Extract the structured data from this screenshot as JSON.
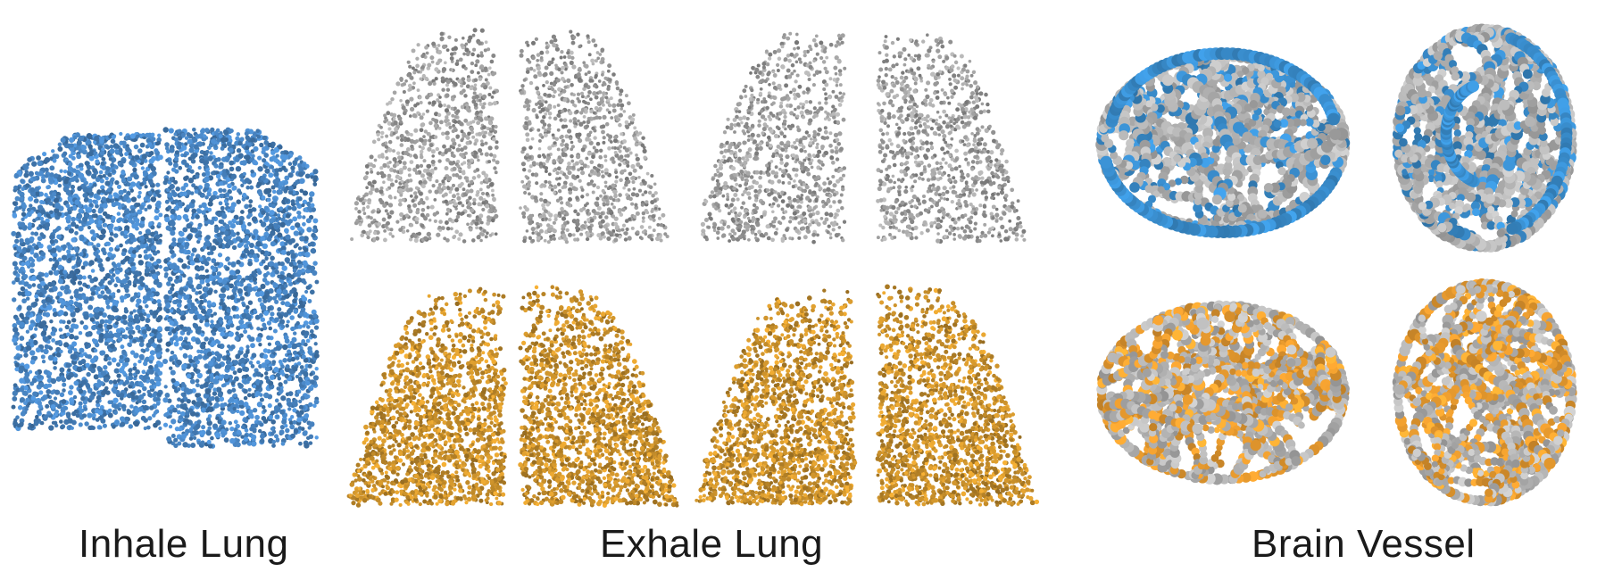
{
  "captions": {
    "inhale": "Inhale Lung",
    "exhale": "Exhale Lung",
    "brain": "Brain Vessel"
  },
  "colors": {
    "inhale_points": "#4a88c7",
    "exhale_source_points": "#a8a8a8",
    "exhale_predicted_points": "#d79a2e",
    "brain_vessel_gray": "#b8b8b8",
    "brain_vessel_blue": "#3a8fd0",
    "brain_vessel_orange": "#f0a030"
  },
  "panels": [
    {
      "group": "inhale",
      "row": "single",
      "color_key": "inhale_points",
      "kind": "lung-pair"
    },
    {
      "group": "exhale",
      "row": "top",
      "color_key": "exhale_source_points",
      "kind": "lung-views",
      "count": 4
    },
    {
      "group": "exhale",
      "row": "bottom",
      "color_key": "exhale_predicted_points",
      "kind": "lung-views",
      "count": 4
    },
    {
      "group": "brain",
      "row": "top",
      "color_key": "brain_vessel_blue",
      "kind": "vessel-views",
      "count": 2
    },
    {
      "group": "brain",
      "row": "bottom",
      "color_key": "brain_vessel_orange",
      "kind": "vessel-views",
      "count": 2
    }
  ]
}
